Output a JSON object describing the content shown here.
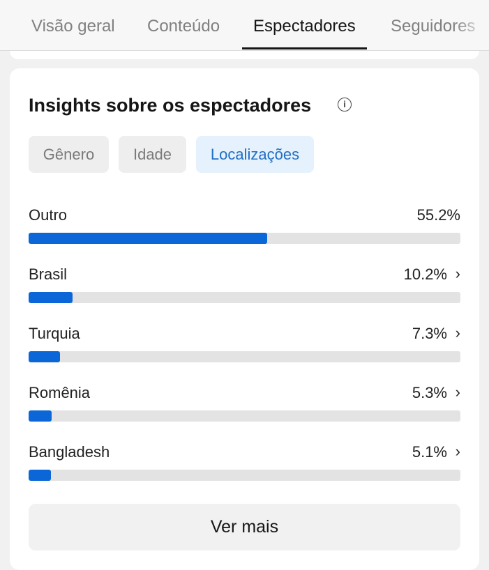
{
  "tabs": {
    "items": [
      "Visão geral",
      "Conteúdo",
      "Espectadores",
      "Seguidores"
    ],
    "active": 2
  },
  "card": {
    "title": "Insights sobre os espectadores",
    "filters": {
      "items": [
        "Gênero",
        "Idade",
        "Localizações"
      ],
      "active": 2
    },
    "locations": {
      "rows": [
        {
          "name": "Outro",
          "value": 55.2,
          "label": "55.2%",
          "arrow": false
        },
        {
          "name": "Brasil",
          "value": 10.2,
          "label": "10.2%",
          "arrow": true
        },
        {
          "name": "Turquia",
          "value": 7.3,
          "label": "7.3%",
          "arrow": true
        },
        {
          "name": "Romênia",
          "value": 5.3,
          "label": "5.3%",
          "arrow": true
        },
        {
          "name": "Bangladesh",
          "value": 5.1,
          "label": "5.1%",
          "arrow": true
        }
      ]
    },
    "button": "Ver mais"
  }
}
